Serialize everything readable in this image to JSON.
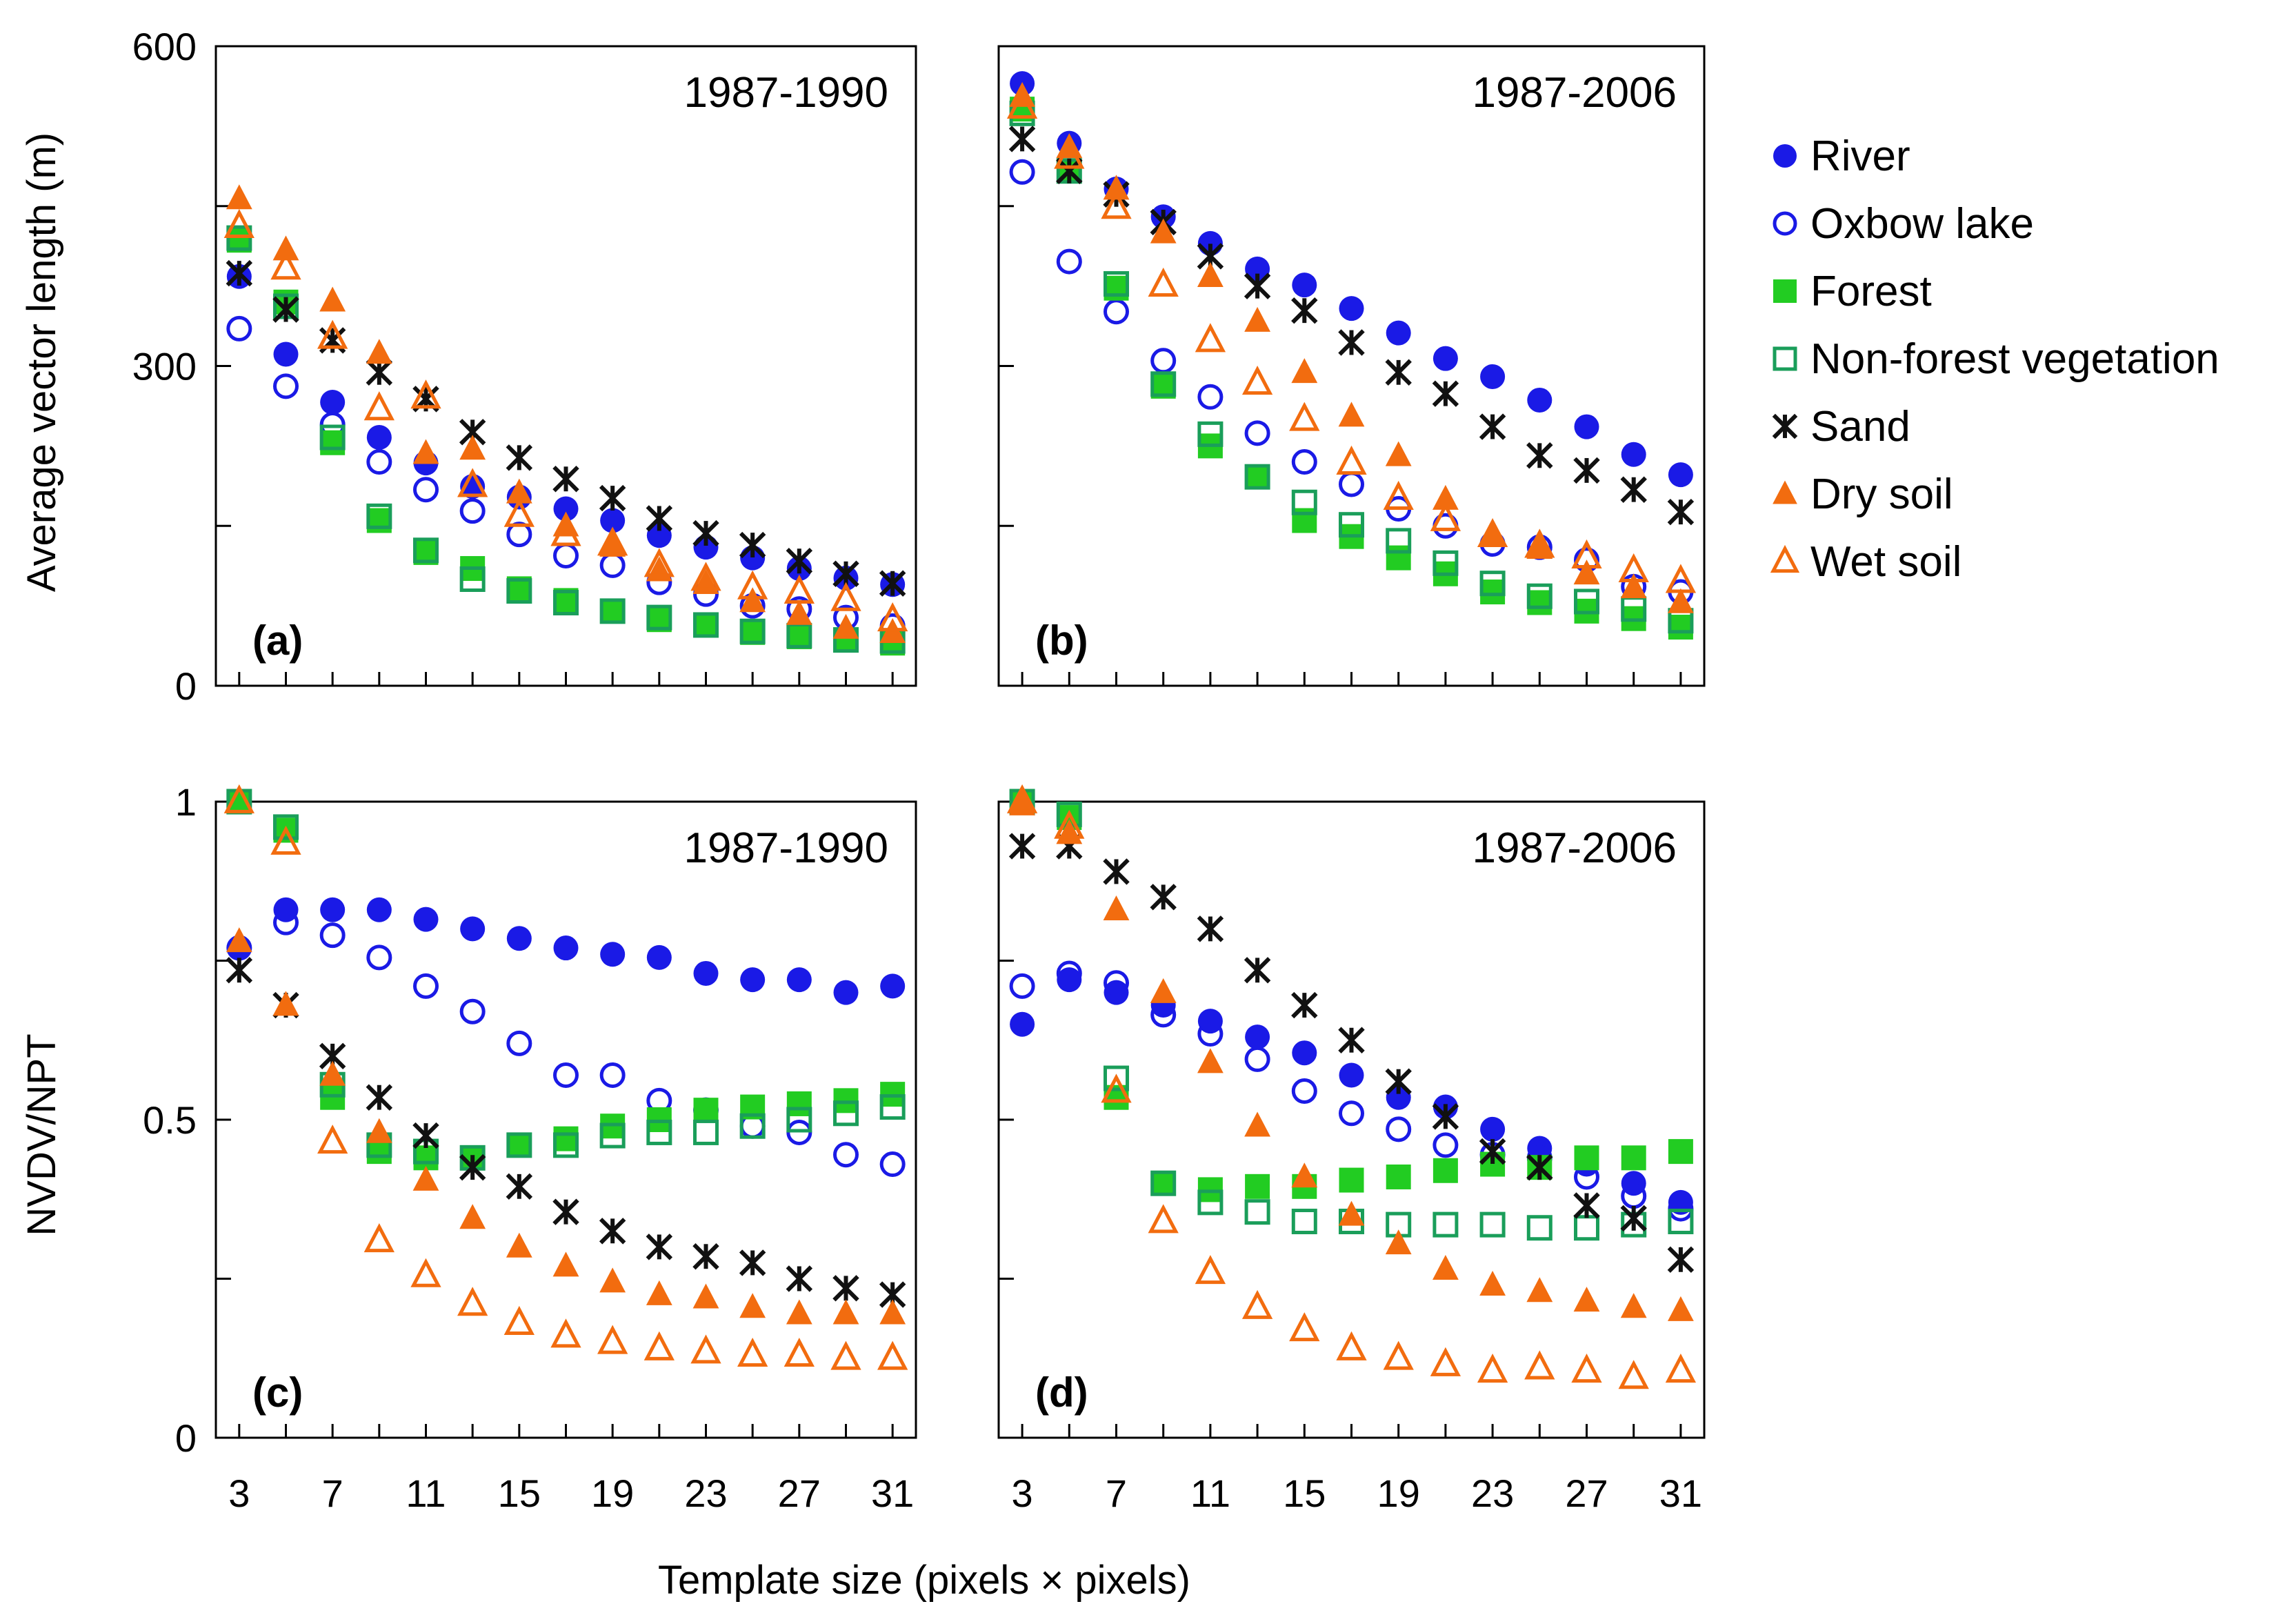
{
  "chart_data": [
    {
      "panel": "(a)",
      "type": "scatter",
      "period": "1987-1990",
      "ylabel": "Average vector length (m)",
      "ylim": [
        0,
        600
      ],
      "yticks": [
        0,
        300,
        600
      ],
      "yminor": [
        150,
        450
      ],
      "xlim": [
        2,
        32
      ],
      "x": [
        3,
        5,
        7,
        9,
        11,
        13,
        15,
        17,
        19,
        21,
        23,
        25,
        27,
        29,
        31
      ],
      "series": [
        {
          "name": "River",
          "values": [
            384,
            311,
            266,
            233,
            209,
            187,
            177,
            166,
            155,
            141,
            130,
            120,
            110,
            101,
            95
          ]
        },
        {
          "name": "Oxbow lake",
          "values": [
            335,
            281,
            245,
            210,
            184,
            164,
            142,
            122,
            113,
            97,
            86,
            75,
            72,
            64,
            56
          ]
        },
        {
          "name": "Forest",
          "values": [
            418,
            360,
            228,
            155,
            125,
            110,
            91,
            80,
            70,
            62,
            57,
            50,
            46,
            43,
            40
          ]
        },
        {
          "name": "Non-forest vegetation",
          "values": [
            420,
            356,
            233,
            159,
            127,
            100,
            89,
            78,
            70,
            64,
            57,
            51,
            47,
            43,
            42
          ]
        },
        {
          "name": "Sand",
          "values": [
            387,
            353,
            324,
            294,
            269,
            238,
            214,
            194,
            176,
            157,
            143,
            132,
            117,
            105,
            96
          ]
        },
        {
          "name": "Dry soil",
          "values": [
            457,
            409,
            361,
            312,
            218,
            222,
            181,
            150,
            131,
            108,
            96,
            79,
            67,
            54,
            50
          ]
        },
        {
          "name": "Wet soil",
          "values": [
            431,
            392,
            327,
            260,
            271,
            188,
            160,
            142,
            133,
            113,
            100,
            92,
            88,
            81,
            62
          ]
        }
      ]
    },
    {
      "panel": "(b)",
      "type": "scatter",
      "period": "1987-2006",
      "ylabel": "",
      "ylim": [
        0,
        600
      ],
      "yticks": [],
      "yminor": [
        150,
        300,
        450
      ],
      "xlim": [
        2,
        32
      ],
      "x": [
        3,
        5,
        7,
        9,
        11,
        13,
        15,
        17,
        19,
        21,
        23,
        25,
        27,
        29,
        31
      ],
      "series": [
        {
          "name": "River",
          "values": [
            565,
            509,
            466,
            440,
            415,
            391,
            376,
            354,
            331,
            307,
            290,
            268,
            243,
            217,
            198
          ]
        },
        {
          "name": "Oxbow lake",
          "values": [
            482,
            398,
            351,
            305,
            271,
            237,
            210,
            189,
            166,
            150,
            133,
            130,
            118,
            93,
            88
          ]
        },
        {
          "name": "Forest",
          "values": [
            541,
            483,
            373,
            281,
            225,
            196,
            155,
            140,
            120,
            105,
            88,
            78,
            70,
            63,
            55
          ]
        },
        {
          "name": "Non-forest vegetation",
          "values": [
            537,
            483,
            377,
            283,
            236,
            196,
            172,
            151,
            136,
            115,
            96,
            84,
            79,
            72,
            61
          ]
        },
        {
          "name": "Sand",
          "values": [
            513,
            483,
            461,
            435,
            403,
            375,
            352,
            322,
            294,
            274,
            243,
            216,
            202,
            184,
            163
          ]
        },
        {
          "name": "Dry soil",
          "values": [
            553,
            505,
            466,
            425,
            384,
            342,
            294,
            253,
            216,
            175,
            143,
            129,
            105,
            92,
            78
          ]
        },
        {
          "name": "Wet soil",
          "values": [
            543,
            496,
            449,
            376,
            324,
            284,
            250,
            209,
            176,
            156,
            141,
            131,
            121,
            108,
            98
          ]
        }
      ]
    },
    {
      "panel": "(c)",
      "type": "scatter",
      "period": "1987-1990",
      "ylabel": "NVDV/NPT",
      "ylim": [
        0,
        1
      ],
      "yticks": [
        0,
        0.5,
        1
      ],
      "yminor": [
        0.25,
        0.75
      ],
      "xlim": [
        2,
        32
      ],
      "xlabel": "Template size (pixels × pixels)",
      "xticks": [
        3,
        7,
        11,
        15,
        19,
        23,
        27,
        31
      ],
      "x": [
        3,
        5,
        7,
        9,
        11,
        13,
        15,
        17,
        19,
        21,
        23,
        25,
        27,
        29,
        31
      ],
      "series": [
        {
          "name": "River",
          "values": [
            0.77,
            0.83,
            0.83,
            0.83,
            0.815,
            0.8,
            0.785,
            0.77,
            0.76,
            0.755,
            0.73,
            0.72,
            0.72,
            0.7,
            0.71
          ]
        },
        {
          "name": "Oxbow lake",
          "values": [
            0.77,
            0.81,
            0.79,
            0.755,
            0.71,
            0.67,
            0.62,
            0.57,
            0.57,
            0.53,
            0.515,
            0.49,
            0.48,
            0.445,
            0.43
          ]
        },
        {
          "name": "Forest",
          "values": [
            1.0,
            0.955,
            0.535,
            0.45,
            0.44,
            0.44,
            0.46,
            0.47,
            0.49,
            0.5,
            0.515,
            0.52,
            0.525,
            0.53,
            0.54
          ]
        },
        {
          "name": "Non-forest vegetation",
          "values": [
            1.0,
            0.96,
            0.555,
            0.46,
            0.45,
            0.44,
            0.46,
            0.46,
            0.475,
            0.48,
            0.48,
            0.49,
            0.5,
            0.51,
            0.52
          ]
        },
        {
          "name": "Sand",
          "values": [
            0.735,
            0.68,
            0.6,
            0.535,
            0.475,
            0.425,
            0.395,
            0.355,
            0.325,
            0.3,
            0.285,
            0.275,
            0.25,
            0.235,
            0.225
          ]
        },
        {
          "name": "Dry soil",
          "values": [
            0.78,
            0.68,
            0.57,
            0.48,
            0.405,
            0.345,
            0.3,
            0.27,
            0.245,
            0.225,
            0.22,
            0.205,
            0.195,
            0.195,
            0.195
          ]
        },
        {
          "name": "Wet soil",
          "values": [
            1.0,
            0.935,
            0.465,
            0.31,
            0.255,
            0.21,
            0.18,
            0.16,
            0.15,
            0.14,
            0.135,
            0.13,
            0.13,
            0.125,
            0.125
          ]
        }
      ]
    },
    {
      "panel": "(d)",
      "type": "scatter",
      "period": "1987-2006",
      "ylabel": "",
      "ylim": [
        0,
        1
      ],
      "yticks": [],
      "yminor": [
        0.25,
        0.5,
        0.75
      ],
      "xlim": [
        2,
        32
      ],
      "xticks": [
        3,
        7,
        11,
        15,
        19,
        23,
        27,
        31
      ],
      "x": [
        3,
        5,
        7,
        9,
        11,
        13,
        15,
        17,
        19,
        21,
        23,
        25,
        27,
        29,
        31
      ],
      "series": [
        {
          "name": "River",
          "values": [
            0.65,
            0.72,
            0.7,
            0.68,
            0.655,
            0.63,
            0.605,
            0.57,
            0.535,
            0.52,
            0.485,
            0.455,
            0.43,
            0.4,
            0.37
          ]
        },
        {
          "name": "Oxbow lake",
          "values": [
            0.71,
            0.73,
            0.715,
            0.665,
            0.635,
            0.595,
            0.545,
            0.51,
            0.485,
            0.46,
            0.445,
            0.44,
            0.41,
            0.38,
            0.36
          ]
        },
        {
          "name": "Forest",
          "values": [
            1.0,
            0.975,
            0.535,
            0.4,
            0.39,
            0.395,
            0.395,
            0.405,
            0.41,
            0.42,
            0.43,
            0.425,
            0.44,
            0.44,
            0.45
          ]
        },
        {
          "name": "Non-forest vegetation",
          "values": [
            1.0,
            0.98,
            0.565,
            0.4,
            0.37,
            0.355,
            0.34,
            0.34,
            0.335,
            0.335,
            0.335,
            0.33,
            0.33,
            0.335,
            0.34
          ]
        },
        {
          "name": "Sand",
          "values": [
            0.93,
            0.93,
            0.89,
            0.85,
            0.8,
            0.735,
            0.68,
            0.625,
            0.56,
            0.505,
            0.45,
            0.425,
            0.365,
            0.345,
            0.28
          ]
        },
        {
          "name": "Dry soil",
          "values": [
            0.995,
            0.95,
            0.83,
            0.7,
            0.59,
            0.49,
            0.41,
            0.35,
            0.305,
            0.265,
            0.24,
            0.23,
            0.215,
            0.205,
            0.2
          ]
        },
        {
          "name": "Wet soil",
          "values": [
            1.0,
            0.96,
            0.545,
            0.34,
            0.26,
            0.205,
            0.17,
            0.14,
            0.125,
            0.115,
            0.105,
            0.11,
            0.105,
            0.095,
            0.105
          ]
        }
      ]
    }
  ],
  "legend": [
    {
      "name": "River",
      "marker": "filled-circle",
      "color": "#1a1ae6"
    },
    {
      "name": "Oxbow lake",
      "marker": "open-circle",
      "color": "#1a1ae6"
    },
    {
      "name": "Forest",
      "marker": "filled-square",
      "color": "#22cc22"
    },
    {
      "name": "Non-forest vegetation",
      "marker": "open-square",
      "color": "#1a9e5a"
    },
    {
      "name": "Sand",
      "marker": "asterisk",
      "color": "#111111"
    },
    {
      "name": "Dry soil",
      "marker": "filled-triangle",
      "color": "#f26c0f"
    },
    {
      "name": "Wet soil",
      "marker": "open-triangle",
      "color": "#f26c0f"
    }
  ]
}
